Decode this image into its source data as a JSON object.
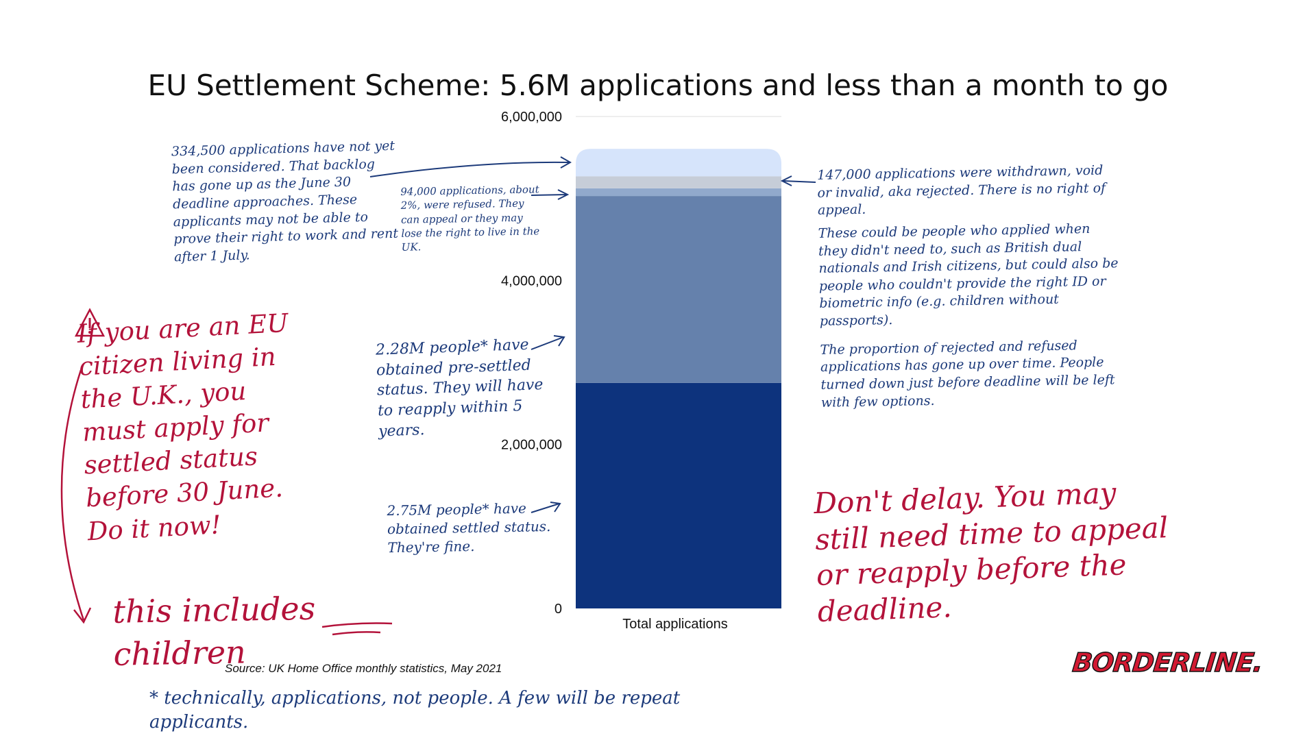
{
  "chart_data": {
    "type": "bar",
    "stacked": true,
    "title": "EU Settlement Scheme: 5.6M applications and less than a month to go",
    "categories": [
      "Total applications"
    ],
    "series": [
      {
        "values": [
          2750000
        ],
        "color": "#0d337d"
      },
      {
        "values": [
          2280000
        ],
        "color": "#6581ac"
      },
      {
        "values": [
          94000
        ],
        "color": "#91a9cc"
      },
      {
        "values": [
          147000
        ],
        "color": "#c6cdd8"
      },
      {
        "values": [
          334500
        ],
        "color": "#d6e4fb"
      }
    ],
    "yticks": [
      0,
      2000000,
      4000000,
      6000000
    ],
    "ytick_labels": [
      "0",
      "2,000,000",
      "4,000,000",
      "6,000,000"
    ],
    "ylim": [
      0,
      6000000
    ],
    "grid": true,
    "xlabel": "",
    "ylabel": ""
  },
  "annotations": {
    "backlog": "334,500 applications have not yet been considered. That backlog has gone up as the June 30 deadline approaches. These applicants may not be able to prove their right to work and rent after 1 July.",
    "refused": "94,000 applications, about 2%, were refused. They can appeal or they may lose the right to live in the UK.",
    "withdrawn": "147,000 applications were withdrawn, void or invalid, aka rejected. There is no right of appeal.",
    "withdrawn_2": "These could be people who applied when they didn't need to, such as British dual nationals and Irish citizens, but could also be people who couldn't provide the right ID or biometric info (e.g. children without passports).",
    "withdrawn_3": "The proportion of rejected and refused applications has gone up over time. People turned down just before deadline will be left with few options.",
    "presettled": "2.28M people* have obtained pre-settled status. They will have to reapply within 5 years.",
    "settled": "2.75M people* have obtained settled status. They're fine.",
    "dont_delay": "Don't delay. You may still need time to appeal or reapply before the deadline.",
    "eu_citizen": "If you are an EU citizen living in the U.K., you must apply for settled status before 30 June. Do it now!",
    "children": "this includes children",
    "footnote": "* technically, applications, not people. A few will be repeat applicants."
  },
  "source": "Source: UK Home Office monthly statistics, May 2021",
  "logo": "BORDERLINE."
}
